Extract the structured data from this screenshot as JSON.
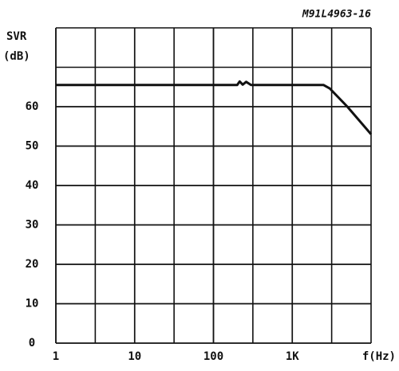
{
  "chart_data": {
    "type": "line",
    "title": "M91L4963-16",
    "ylabel": [
      "SVR",
      "(dB)"
    ],
    "xlabel": "f(Hz)",
    "x": [
      1,
      200,
      215,
      235,
      260,
      300,
      2500,
      3000,
      5000,
      10000
    ],
    "series": [
      {
        "name": "SVR",
        "color": "#111111",
        "values": [
          65.5,
          65.5,
          66.4,
          65.6,
          66.3,
          65.5,
          65.5,
          64.6,
          60,
          53
        ]
      }
    ],
    "xlim": [
      1,
      10000
    ],
    "xscale": "log",
    "xticks": [
      1,
      10,
      100,
      {
        "value": 1000,
        "label": "1K"
      }
    ],
    "ylim": [
      0,
      80
    ],
    "yticks": [
      0,
      10,
      20,
      30,
      40,
      50,
      60
    ],
    "grid": true
  }
}
